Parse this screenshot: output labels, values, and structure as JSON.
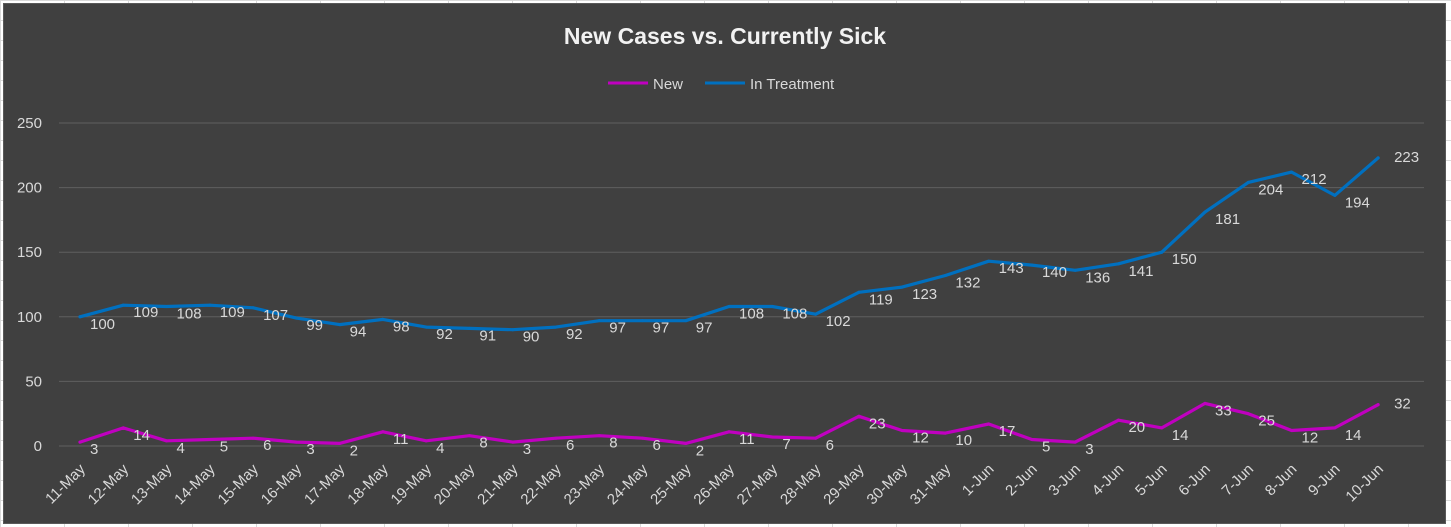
{
  "chart_data": {
    "type": "line",
    "title": "New Cases vs. Currently Sick",
    "xlabel": "",
    "ylabel": "",
    "ylim": [
      0,
      250
    ],
    "yticks": [
      0,
      50,
      100,
      150,
      200,
      250
    ],
    "grid": true,
    "legend_position": "top",
    "categories": [
      "11-May",
      "12-May",
      "13-May",
      "14-May",
      "15-May",
      "16-May",
      "17-May",
      "18-May",
      "19-May",
      "20-May",
      "21-May",
      "22-May",
      "23-May",
      "24-May",
      "25-May",
      "26-May",
      "27-May",
      "28-May",
      "29-May",
      "30-May",
      "31-May",
      "1-Jun",
      "2-Jun",
      "3-Jun",
      "4-Jun",
      "5-Jun",
      "6-Jun",
      "7-Jun",
      "8-Jun",
      "9-Jun",
      "10-Jun"
    ],
    "series": [
      {
        "name": "New",
        "color": "#c000c0",
        "values": [
          3,
          14,
          4,
          5,
          6,
          3,
          2,
          11,
          4,
          8,
          3,
          6,
          8,
          6,
          2,
          11,
          7,
          6,
          23,
          12,
          10,
          17,
          5,
          3,
          20,
          14,
          33,
          25,
          12,
          14,
          32
        ]
      },
      {
        "name": "In Treatment",
        "color": "#0070c0",
        "values": [
          100,
          109,
          108,
          109,
          107,
          99,
          94,
          98,
          92,
          91,
          90,
          92,
          97,
          97,
          97,
          108,
          108,
          102,
          119,
          123,
          132,
          143,
          140,
          136,
          141,
          150,
          181,
          204,
          212,
          194,
          223
        ]
      }
    ]
  }
}
